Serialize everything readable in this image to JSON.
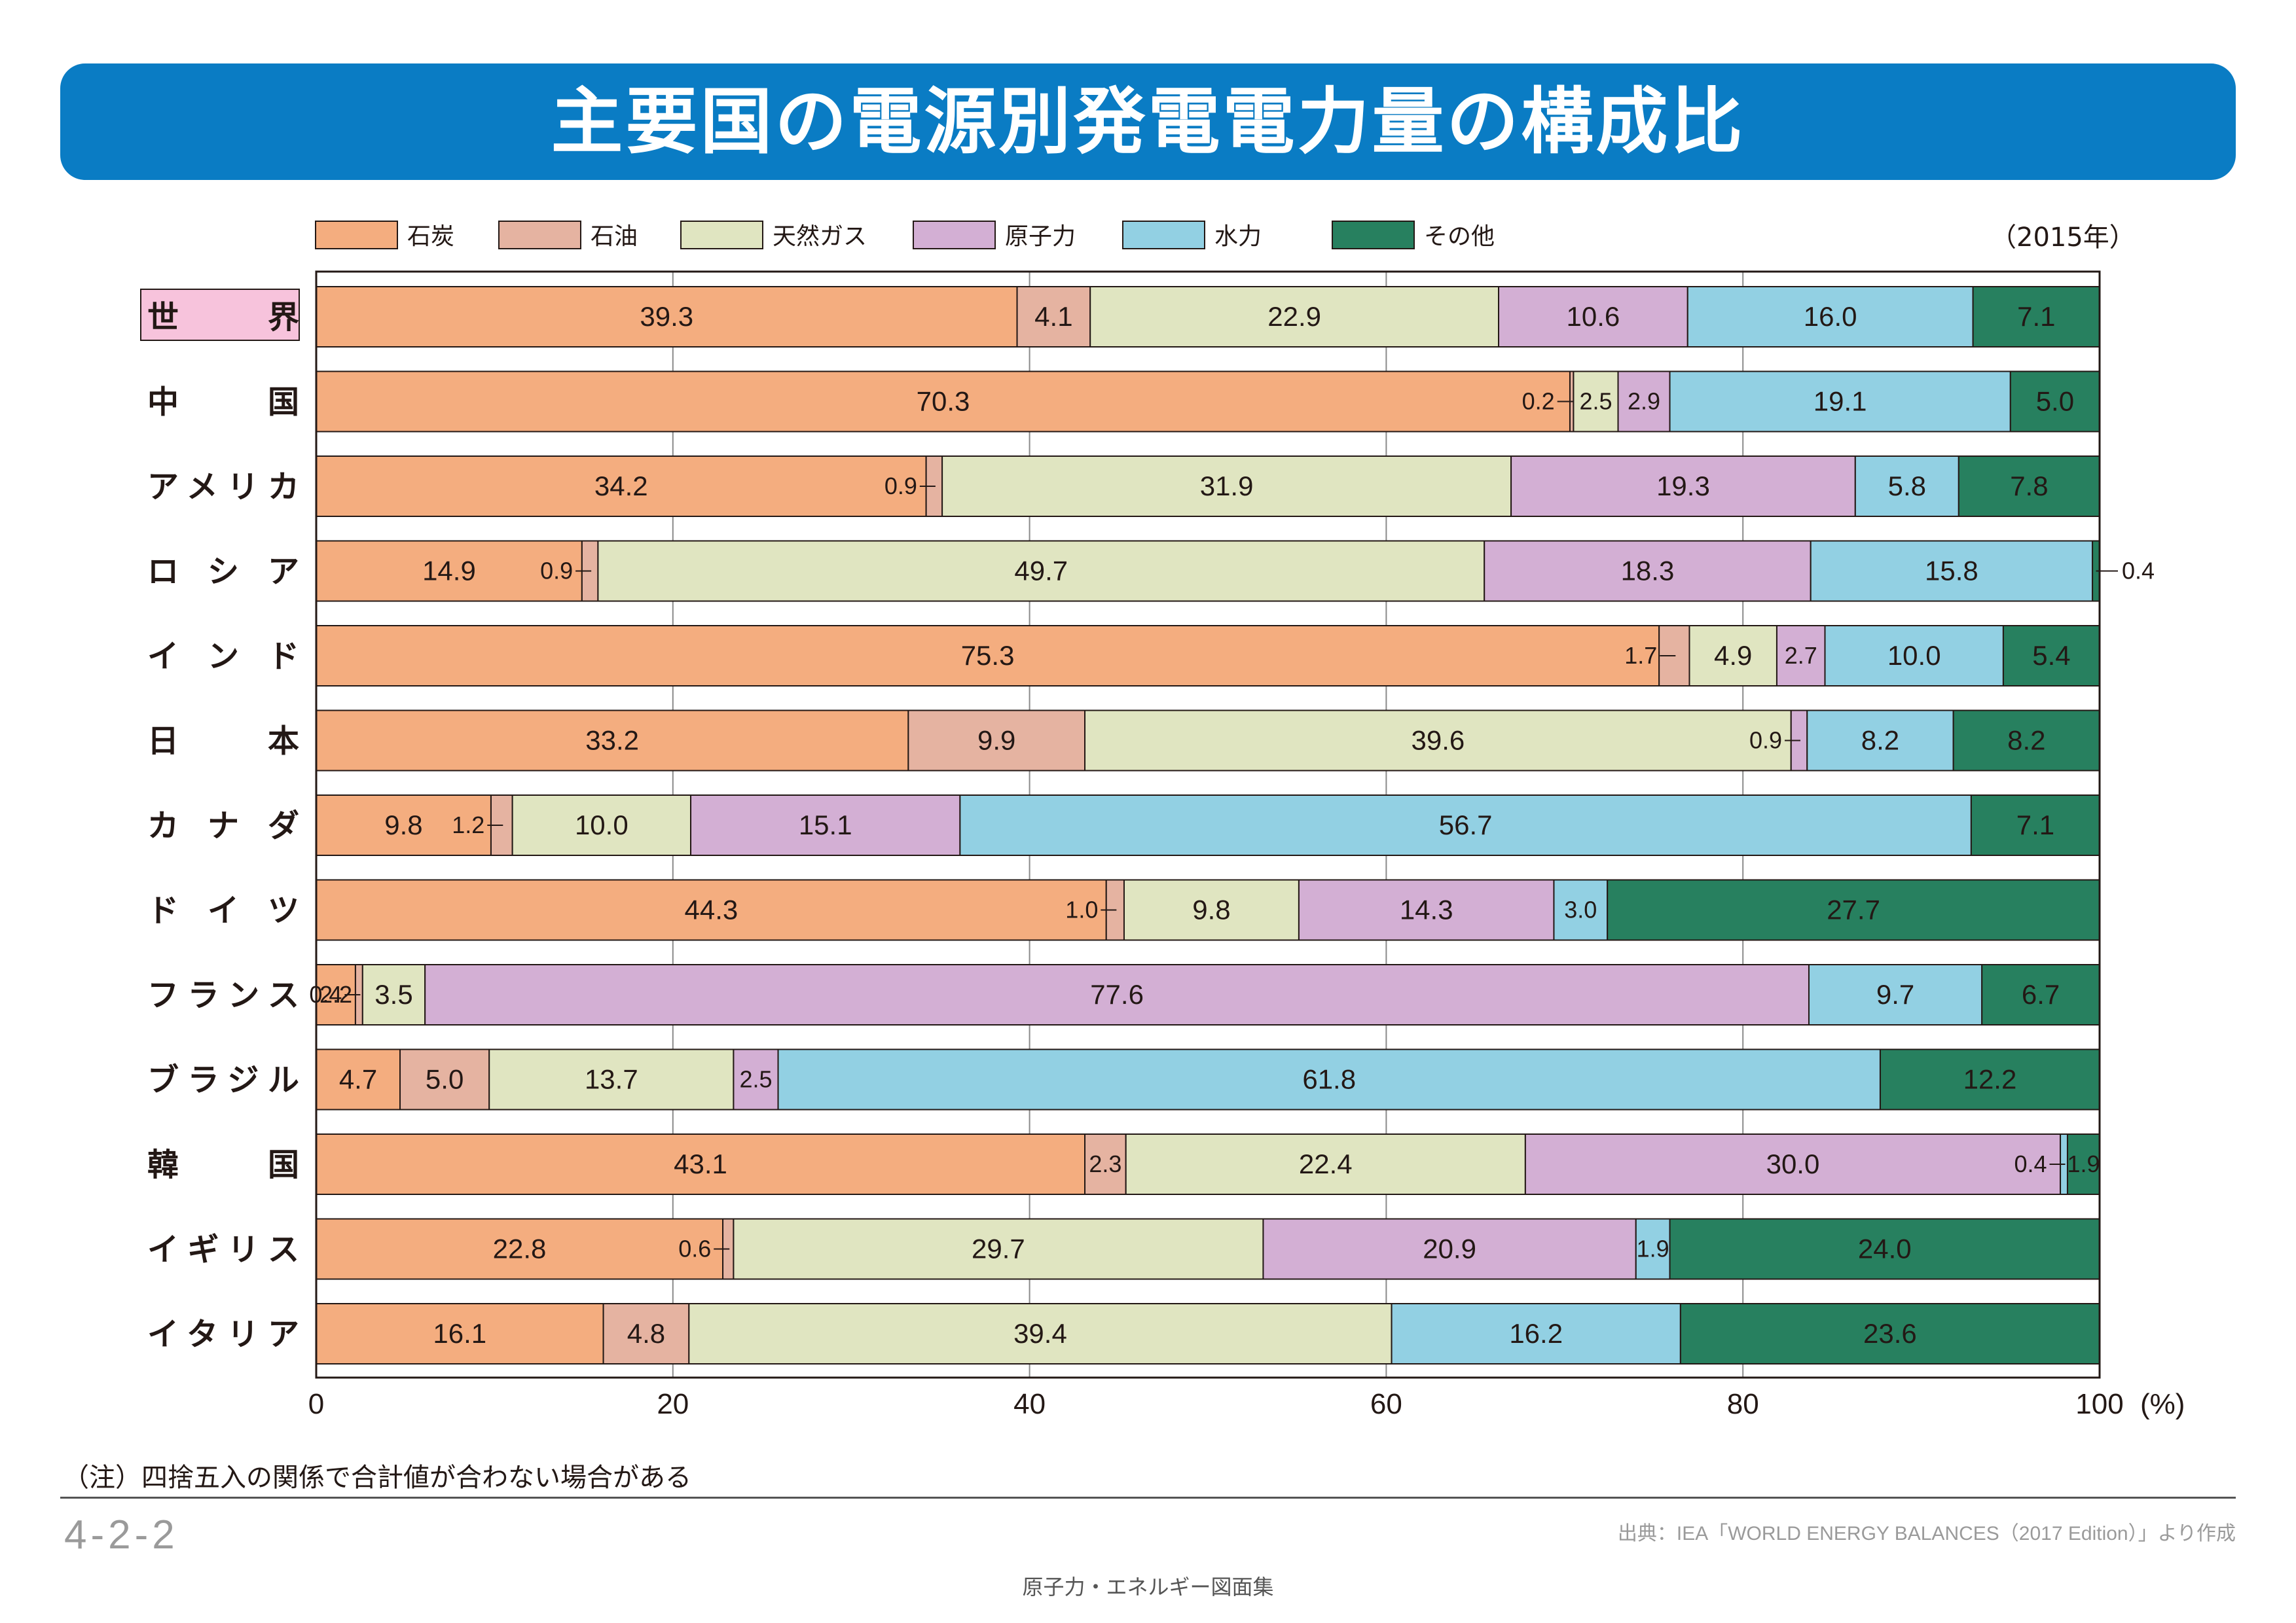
{
  "header": {
    "title": "主要国の電源別発電電力量の構成比"
  },
  "year_note": "（2015年）",
  "note": "（注）四捨五入の関係で合計値が合わない場合がある",
  "code": "4-2-2",
  "source": "出典：IEA「WORLD ENERGY BALANCES（2017 Edition）」より作成",
  "footer": "原子力・エネルギー図面集",
  "colors": {
    "banner": "#0a7cc4",
    "coal": "#f4ad7f",
    "oil": "#e5b3a1",
    "gas": "#e0e5c1",
    "nuclear": "#d3afd4",
    "hydro": "#92d0e3",
    "other": "#27805f",
    "world_label_bg": "#f7c3dc"
  },
  "chart_data": {
    "type": "bar",
    "orientation": "horizontal",
    "stacked": true,
    "title": "主要国の電源別発電電力量の構成比",
    "xlabel": "(%)",
    "ylabel": "",
    "xlim": [
      0,
      100
    ],
    "xticks": [
      "0",
      "20",
      "40",
      "60",
      "80",
      "100"
    ],
    "unit_label": "(%)",
    "grid": true,
    "legend_position": "top",
    "categories": [
      "世　界",
      "中　　国",
      "アメリカ",
      "ロシア",
      "インド",
      "日　　本",
      "カナダ",
      "ドイツ",
      "フランス",
      "ブラジル",
      "韓　　国",
      "イギリス",
      "イタリア"
    ],
    "series": [
      {
        "key": "coal",
        "name": "石炭",
        "values": [
          39.3,
          70.3,
          34.2,
          14.9,
          75.3,
          33.2,
          9.8,
          44.3,
          2.2,
          4.7,
          43.1,
          22.8,
          16.1
        ]
      },
      {
        "key": "oil",
        "name": "石油",
        "values": [
          4.1,
          0.2,
          0.9,
          0.9,
          1.7,
          9.9,
          1.2,
          1.0,
          0.4,
          5.0,
          2.3,
          0.6,
          4.8
        ]
      },
      {
        "key": "gas",
        "name": "天然ガス",
        "values": [
          22.9,
          2.5,
          31.9,
          49.7,
          4.9,
          39.6,
          10.0,
          9.8,
          3.5,
          13.7,
          22.4,
          29.7,
          39.4
        ]
      },
      {
        "key": "nuclear",
        "name": "原子力",
        "values": [
          10.6,
          2.9,
          19.3,
          18.3,
          2.7,
          0.9,
          15.1,
          14.3,
          77.6,
          2.5,
          30.0,
          20.9,
          0
        ]
      },
      {
        "key": "hydro",
        "name": "水力",
        "values": [
          16.0,
          19.1,
          5.8,
          15.8,
          10.0,
          8.2,
          56.7,
          3.0,
          9.7,
          61.8,
          0.4,
          1.9,
          16.2
        ]
      },
      {
        "key": "other",
        "name": "その他",
        "values": [
          7.1,
          5.0,
          7.8,
          0.4,
          5.4,
          8.2,
          7.1,
          27.7,
          6.7,
          12.2,
          1.9,
          24.0,
          23.6
        ]
      }
    ],
    "value_labels": [
      [
        "39.3",
        "4.1",
        "22.9",
        "10.6",
        "16.0",
        "7.1"
      ],
      [
        "70.3",
        "0.2",
        "2.5",
        "2.9",
        "19.1",
        "5.0"
      ],
      [
        "34.2",
        "0.9",
        "31.9",
        "19.3",
        "5.8",
        "7.8"
      ],
      [
        "14.9",
        "0.9",
        "49.7",
        "18.3",
        "15.8",
        "0.4"
      ],
      [
        "75.3",
        "1.7",
        "4.9",
        "2.7",
        "10.0",
        "5.4"
      ],
      [
        "33.2",
        "9.9",
        "39.6",
        "0.9",
        "8.2",
        "8.2"
      ],
      [
        "9.8",
        "1.2",
        "10.0",
        "15.1",
        "56.7",
        "7.1"
      ],
      [
        "44.3",
        "1.0",
        "9.8",
        "14.3",
        "3.0",
        "27.7"
      ],
      [
        "2.2",
        "0.4",
        "3.5",
        "77.6",
        "9.7",
        "6.7"
      ],
      [
        "4.7",
        "5.0",
        "13.7",
        "2.5",
        "61.8",
        "12.2"
      ],
      [
        "43.1",
        "2.3",
        "22.4",
        "30.0",
        "0.4",
        "1.9"
      ],
      [
        "22.8",
        "0.6",
        "29.7",
        "20.9",
        "1.9",
        "24.0"
      ],
      [
        "16.1",
        "4.8",
        "39.4",
        "",
        "16.2",
        "23.6"
      ]
    ],
    "highlighted_category": "世　界"
  }
}
